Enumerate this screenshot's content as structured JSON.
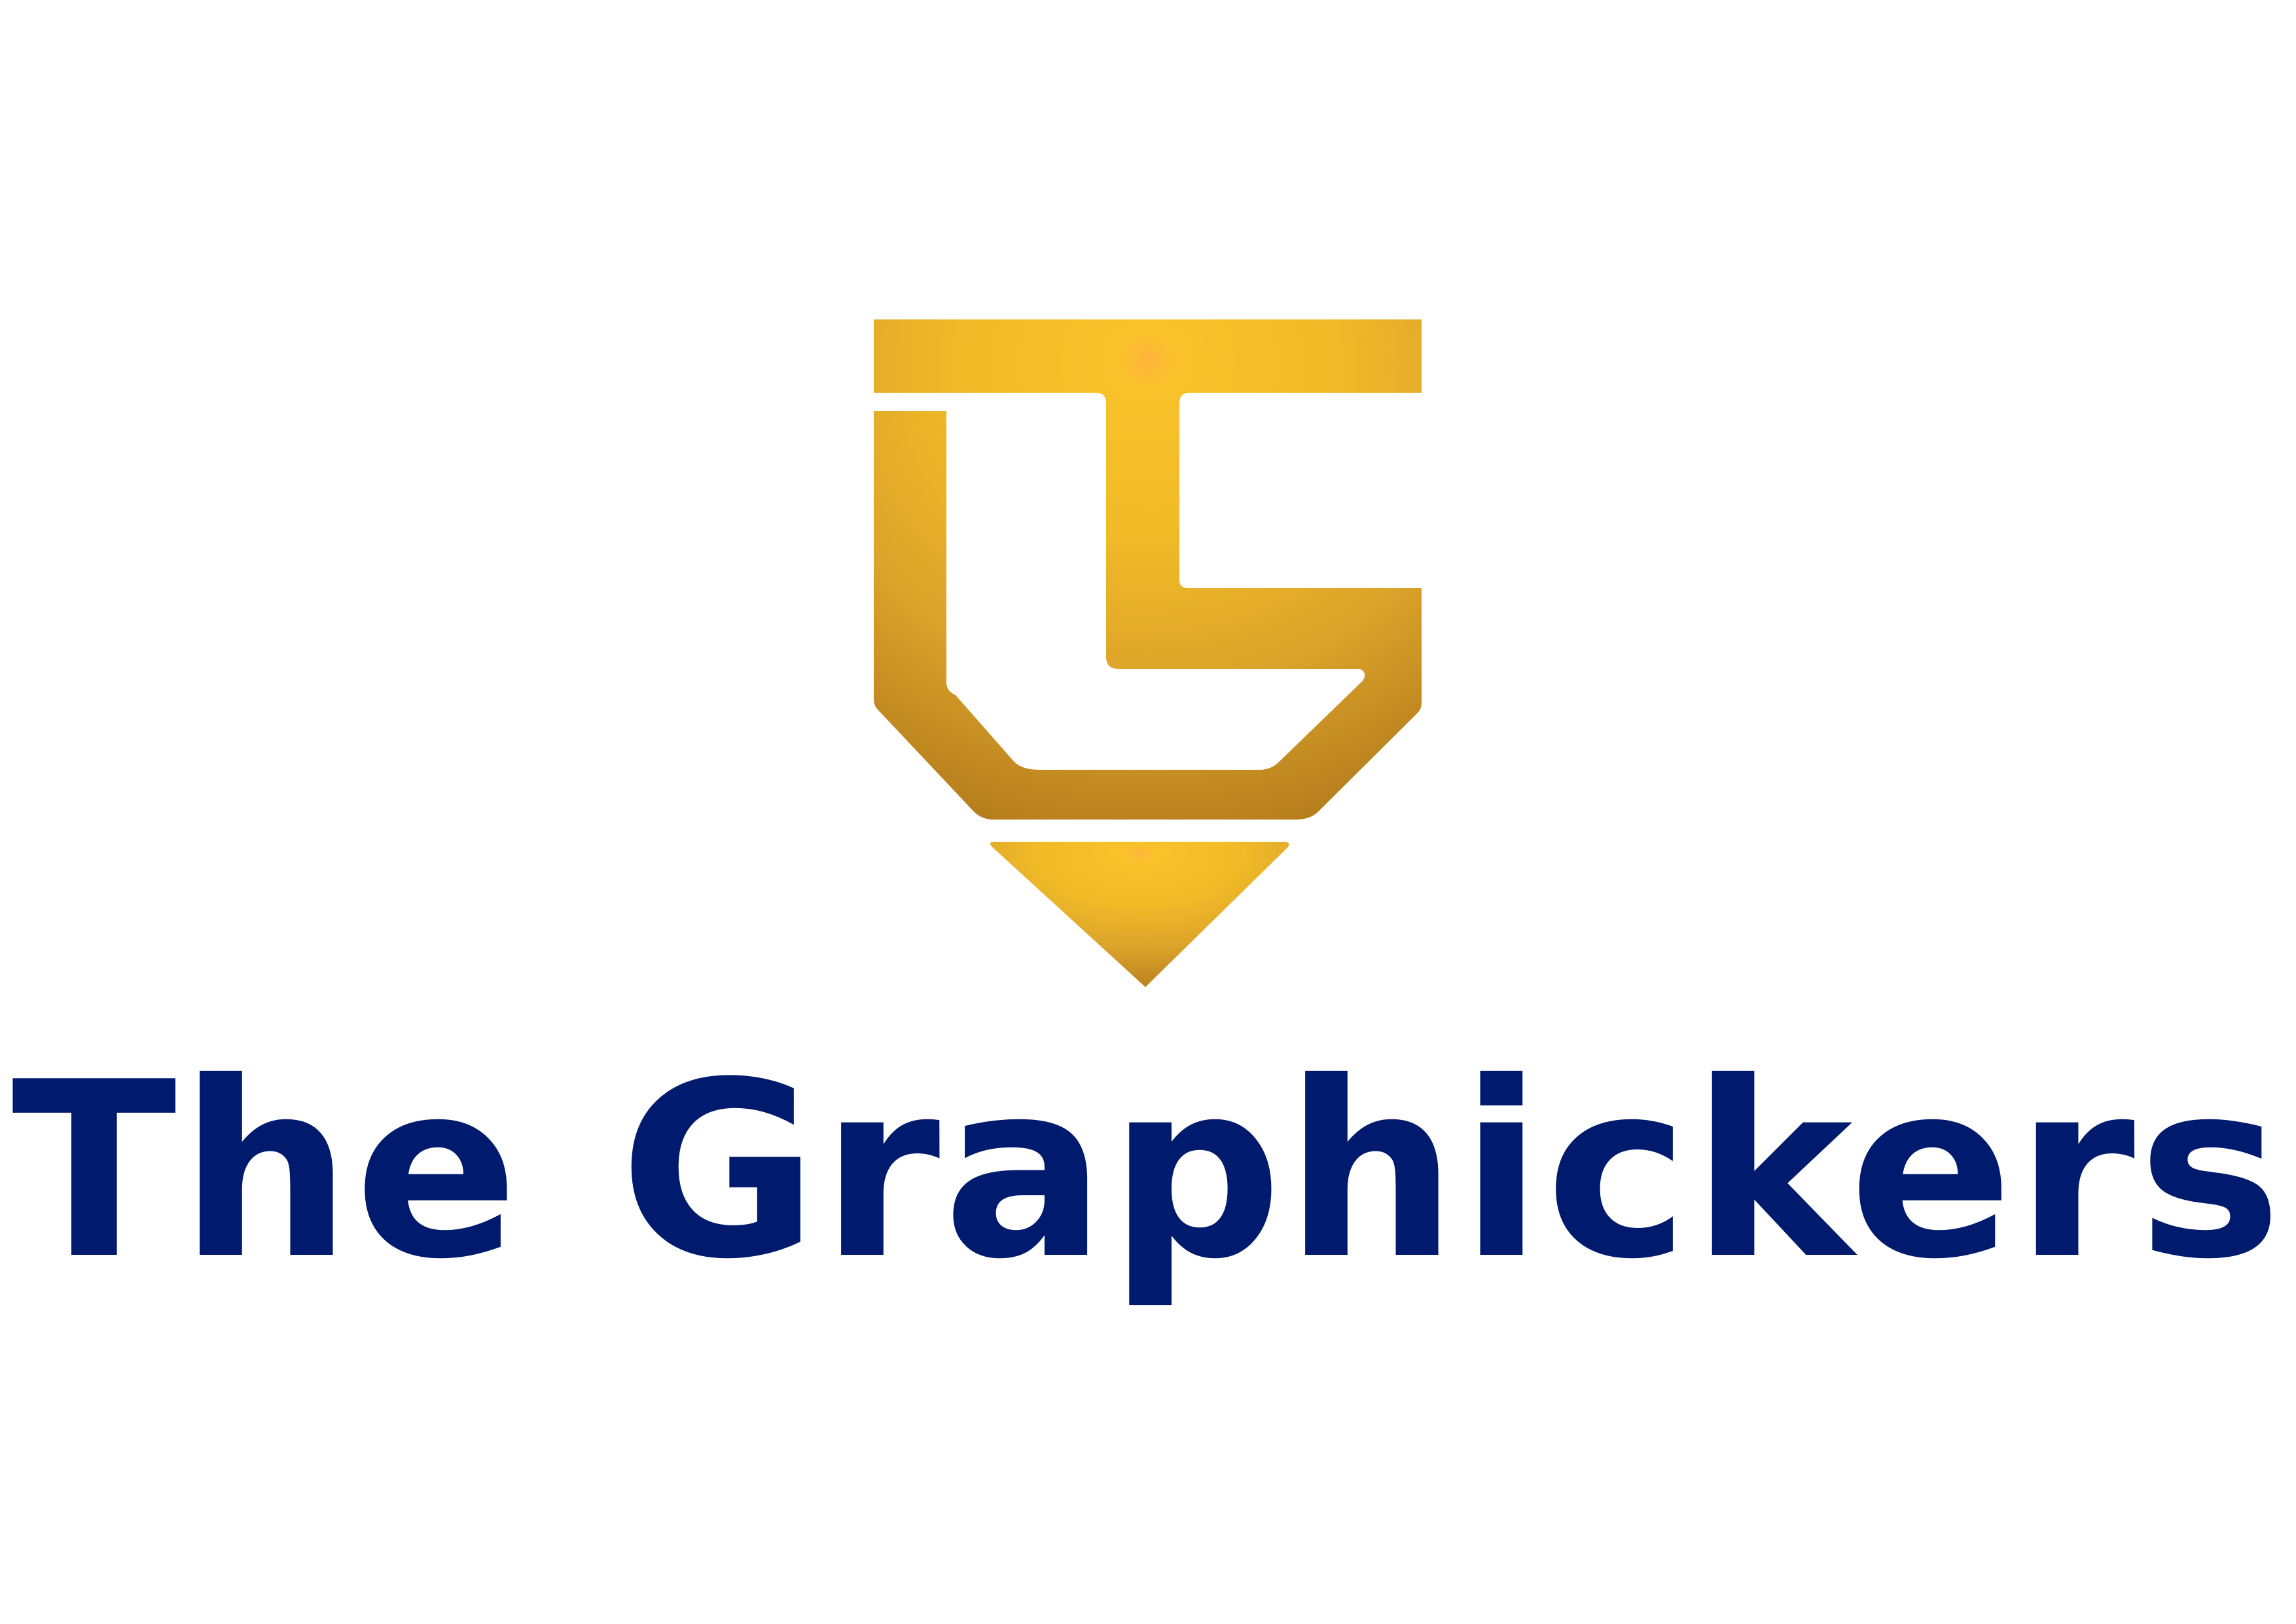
{
  "logo": {
    "monogram_icon": "tg-monogram-pencil-icon",
    "gradient": {
      "highlight": "#F7C12B",
      "mid": "#E0A92A",
      "shadow": "#B8801E"
    }
  },
  "wordmark": {
    "word_1": "The",
    "word_2": "Graphickers",
    "color": "#001A6E"
  }
}
